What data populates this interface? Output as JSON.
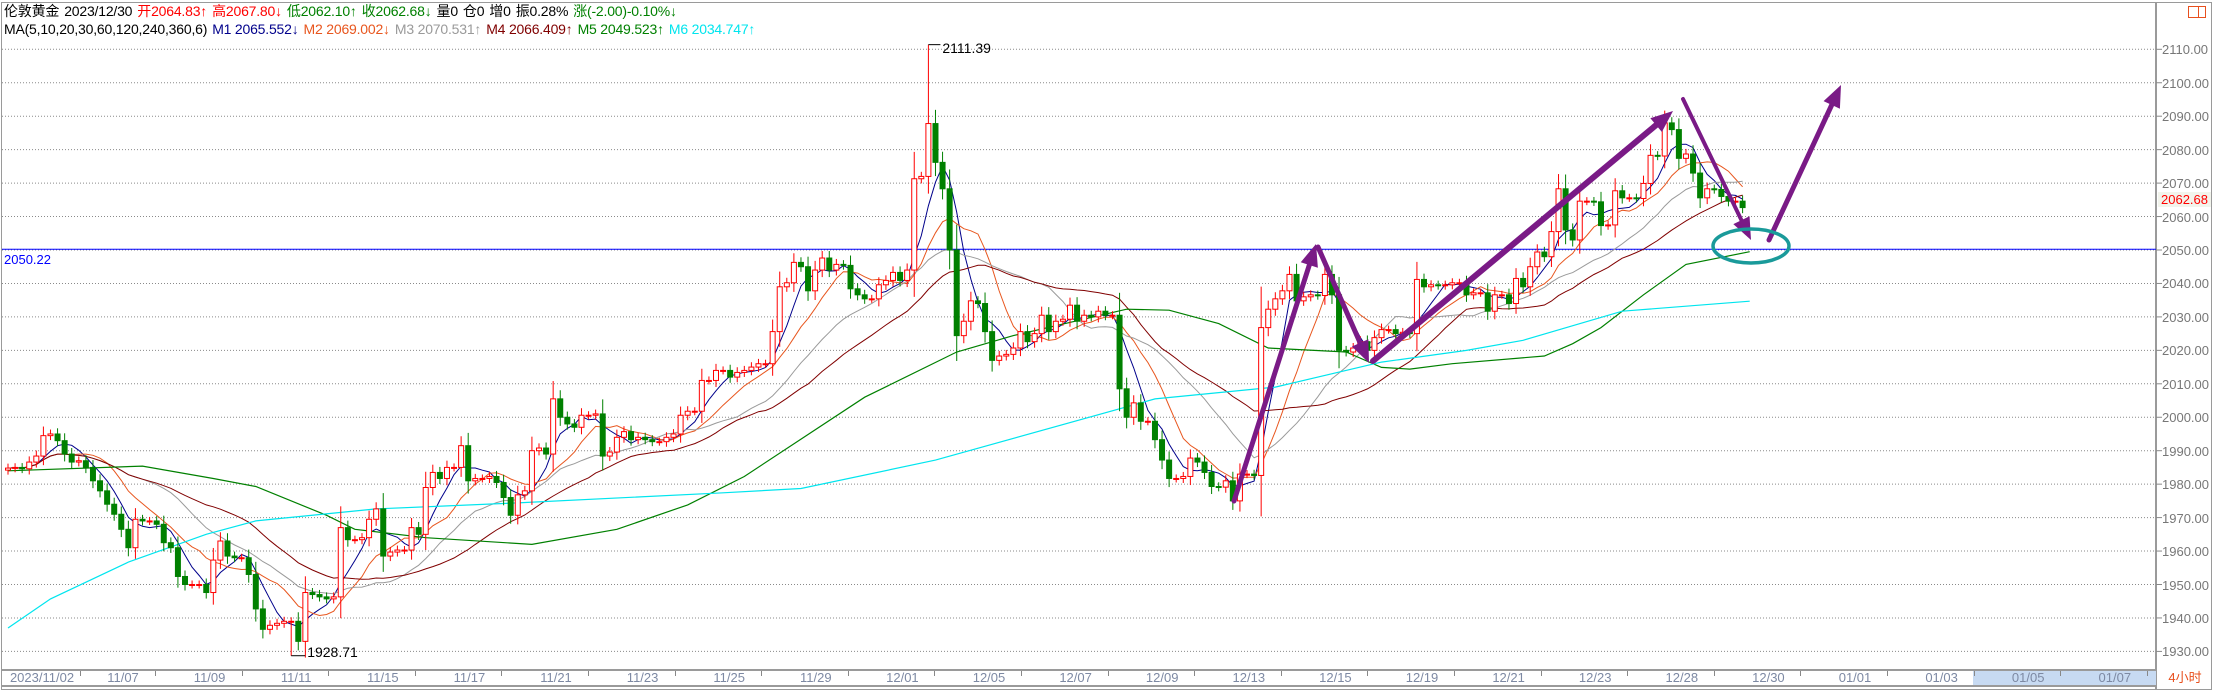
{
  "header": {
    "symbol": "伦敦黄金",
    "date": "2023/12/30",
    "open": "开2064.83↑",
    "high": "高2067.80↓",
    "low": "低2062.10↑",
    "close": "收2062.68↓",
    "volume": "量0",
    "position": "仓0",
    "increase": "增0",
    "amplitude": "振0.28%",
    "change": "涨(-2.00)-0.10%↓"
  },
  "ma_legend": {
    "params": "MA(5,10,20,30,60,120,240,360,6)",
    "m1": "M1 2065.552↓",
    "m2": "M2 2069.002↓",
    "m3": "M3 2070.531↑",
    "m4": "M4 2066.409↑",
    "m5": "M5 2049.523↑",
    "m6": "M6 2034.747↑"
  },
  "colors": {
    "up": "#ff0000",
    "down": "#008000",
    "m1": "#00008b",
    "m2": "#e8561e",
    "m3": "#9a9a9a",
    "m4": "#800000",
    "m5": "#008000",
    "m6": "#00e5ee",
    "reference_line": "#0000ff",
    "annotation_arrow": "#7a1a86",
    "annotation_ellipse": "#1a9a9a"
  },
  "current_price": "2062.68",
  "reference_label": "2050.22",
  "period": "4小时",
  "chart_data": {
    "type": "candlestick",
    "ylim": [
      1925,
      2116
    ],
    "y_ticks": [
      "2110.00",
      "2100.00",
      "2090.00",
      "2080.00",
      "2070.00",
      "2060.00",
      "2050.00",
      "2040.00",
      "2030.00",
      "2020.00",
      "2010.00",
      "2000.00",
      "1990.00",
      "1980.00",
      "1970.00",
      "1960.00",
      "1950.00",
      "1940.00",
      "1930.00"
    ],
    "x_labels": [
      "2023/11/02",
      "11/07",
      "11/09",
      "11/11",
      "11/15",
      "11/17",
      "11/21",
      "11/23",
      "11/25",
      "11/29",
      "12/01",
      "12/05",
      "12/07",
      "12/09",
      "12/13",
      "12/15",
      "12/19",
      "12/21",
      "12/23",
      "12/28",
      "12/30",
      "01/01",
      "01/03",
      "01/05",
      "01/07"
    ],
    "grid": true,
    "reference_value": 2050.22,
    "high_mark": {
      "label": "2111.39",
      "value": 2111.39,
      "bar": 130
    },
    "low_mark": {
      "label": "1928.71",
      "value": 1928.71,
      "bar": 40
    },
    "closes": [
      1984.8,
      1985,
      1984.6,
      1986.6,
      1988.4,
      1994.5,
      1995,
      1993,
      1989,
      1986.6,
      1987,
      1985,
      1981,
      1978,
      1974,
      1971,
      1966.5,
      1961,
      1969.5,
      1969,
      1969,
      1968,
      1962.5,
      1961,
      1952.4,
      1950,
      1950,
      1950,
      1947.6,
      1957.3,
      1963,
      1958.5,
      1958,
      1958,
      1953,
      1942.7,
      1936.6,
      1937.8,
      1938.4,
      1939,
      1939,
      1933,
      1947.6,
      1947,
      1946.3,
      1945.7,
      1946.3,
      1967,
      1963.4,
      1963.4,
      1964,
      1969.5,
      1972.6,
      1958.5,
      1959.7,
      1960.3,
      1960.3,
      1967,
      1965,
      1979,
      1983.5,
      1981.7,
      1985,
      1985,
      1991.5,
      1981,
      1981.7,
      1981.7,
      1982.3,
      1980.5,
      1976,
      1970.7,
      1976.8,
      1978,
      1990,
      1990.8,
      1989,
      2005.5,
      2000,
      1998,
      1997,
      2000.6,
      2000.6,
      2001,
      1988.4,
      1989.6,
      1994,
      1995.7,
      1993.3,
      1994,
      1993.3,
      1992.7,
      1992.7,
      1994,
      1995,
      2000.6,
      2001.8,
      2001.8,
      2011,
      2011,
      2014,
      2014,
      2012,
      2013.4,
      2014,
      2015,
      2016,
      2016,
      2025.6,
      2039,
      2040.2,
      2046.3,
      2045,
      2037.8,
      2044,
      2047.6,
      2044,
      2045.7,
      2045.4,
      2038.4,
      2036.6,
      2035.4,
      2035.4,
      2039.6,
      2040.9,
      2043.3,
      2040.9,
      2044,
      2071.3,
      2072,
      2087.8,
      2076.2,
      2068.3,
      2050,
      2024.4,
      2028.7,
      2034.8,
      2034,
      2025.6,
      2017,
      2018.3,
      2018.8,
      2020.7,
      2025.6,
      2022.6,
      2025,
      2030.5,
      2025.6,
      2028.7,
      2029.3,
      2033.5,
      2028.7,
      2030.5,
      2030,
      2031.7,
      2030.5,
      2030.5,
      2008.5,
      2000,
      2004.3,
      1998.8,
      1998.8,
      1993.3,
      1987.2,
      1981.7,
      1981.7,
      1982.3,
      1987.8,
      1986.6,
      1983.5,
      1979.3,
      1979.1,
      1981,
      1975,
      1983,
      1983,
      1982.6,
      2026.8,
      2032.3,
      2035.4,
      2037.8,
      2042.7,
      2034.8,
      2036,
      2036.6,
      2036.4,
      2042.7,
      2036.6,
      2020,
      2019.5,
      2020.7,
      2022.6,
      2020,
      2023.8,
      2026.2,
      2026.2,
      2025,
      2025.4,
      2025,
      2041.2,
      2039,
      2039.6,
      2039.4,
      2039.6,
      2040.2,
      2040.2,
      2036.6,
      2037.2,
      2037.2,
      2031.7,
      2036.6,
      2036.6,
      2034,
      2041.5,
      2039,
      2045,
      2049.4,
      2048,
      2055.5,
      2068.3,
      2056,
      2053,
      2064.6,
      2064.6,
      2064.4,
      2057.3,
      2057.5,
      2067.7,
      2065.6,
      2065.6,
      2065.4,
      2069.9,
      2078.3,
      2078.1,
      2088,
      2086,
      2077.4,
      2078.7,
      2073,
      2065.6,
      2068.3,
      2068.1,
      2066,
      2064.6,
      2064.6,
      2062.68
    ],
    "ma_computed": [
      {
        "name": "M1",
        "period": 5
      },
      {
        "name": "M2",
        "period": 10
      },
      {
        "name": "M3",
        "period": 20
      },
      {
        "name": "M4",
        "period": 30
      }
    ],
    "ma_traced": {
      "M5": [
        [
          0,
          1984
        ],
        [
          19,
          1985.4
        ],
        [
          29,
          1981.7
        ],
        [
          35,
          1979.3
        ],
        [
          45,
          1970.7
        ],
        [
          49,
          1966.5
        ],
        [
          59,
          1964
        ],
        [
          74,
          1962
        ],
        [
          86,
          1966.5
        ],
        [
          96,
          1973.8
        ],
        [
          104,
          1982.3
        ],
        [
          121,
          2006
        ],
        [
          134,
          2019.5
        ],
        [
          142,
          2024.4
        ],
        [
          158,
          2032.3
        ],
        [
          164,
          2032
        ],
        [
          171,
          2028
        ],
        [
          178,
          2020.7
        ],
        [
          189,
          2019.5
        ],
        [
          194,
          2014.9
        ],
        [
          198,
          2014.4
        ],
        [
          204,
          2016
        ],
        [
          217,
          2018.3
        ],
        [
          221,
          2022
        ],
        [
          225,
          2026.8
        ],
        [
          231,
          2036.6
        ],
        [
          237,
          2045.7
        ],
        [
          246,
          2049.5
        ]
      ],
      "M6": [
        [
          0,
          1937
        ],
        [
          6,
          1945.7
        ],
        [
          17,
          1956.7
        ],
        [
          28,
          1965
        ],
        [
          35,
          1969
        ],
        [
          52,
          1972.6
        ],
        [
          72,
          1974.4
        ],
        [
          101,
          1977.4
        ],
        [
          112,
          1978.7
        ],
        [
          131,
          1987.2
        ],
        [
          162,
          2005.5
        ],
        [
          179,
          2009
        ],
        [
          194,
          2016.5
        ],
        [
          206,
          2020
        ],
        [
          214,
          2023
        ],
        [
          228,
          2031.7
        ],
        [
          246,
          2034.7
        ]
      ]
    }
  }
}
